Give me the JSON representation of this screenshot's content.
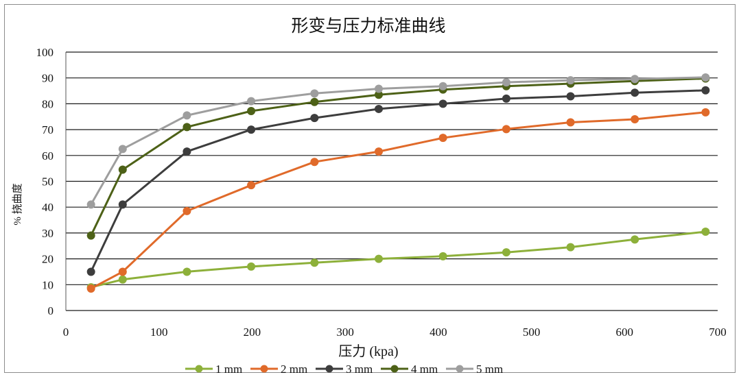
{
  "chart_data": {
    "type": "line",
    "title": "形变与压力标准曲线",
    "xlabel": "压力 (kpa)",
    "ylabel": "% 挠曲度",
    "xlim": [
      0,
      700
    ],
    "ylim": [
      0,
      100
    ],
    "xticks": [
      0,
      100,
      200,
      300,
      400,
      500,
      600,
      700
    ],
    "yticks": [
      0,
      10,
      20,
      30,
      40,
      50,
      60,
      70,
      80,
      90,
      100
    ],
    "grid": "horizontal",
    "legend_position": "bottom",
    "x": [
      27,
      61,
      130,
      199,
      267,
      336,
      405,
      473,
      542,
      611,
      687
    ],
    "series": [
      {
        "name": "1 mm",
        "color": "#8db03a",
        "values": [
          9,
          12,
          15,
          17,
          18.5,
          20,
          21,
          22.5,
          24.5,
          27.5,
          30.5
        ]
      },
      {
        "name": "2 mm",
        "color": "#e06a2a",
        "values": [
          8.5,
          15,
          38.5,
          48.5,
          57.5,
          61.5,
          66.8,
          70.2,
          72.8,
          74,
          76.7
        ]
      },
      {
        "name": "3 mm",
        "color": "#3d3d3d",
        "values": [
          15,
          41,
          61.5,
          70,
          74.5,
          78,
          80,
          82,
          82.9,
          84.3,
          85.2
        ]
      },
      {
        "name": "4 mm",
        "color": "#4d6117",
        "values": [
          29,
          54.5,
          71,
          77.2,
          80.7,
          83.5,
          85.5,
          86.8,
          87.8,
          88.8,
          89.8
        ]
      },
      {
        "name": "5 mm",
        "color": "#9e9e9e",
        "values": [
          41,
          62.5,
          75.5,
          81,
          84,
          85.8,
          86.8,
          88.3,
          89.1,
          89.6,
          90.2
        ]
      }
    ]
  }
}
